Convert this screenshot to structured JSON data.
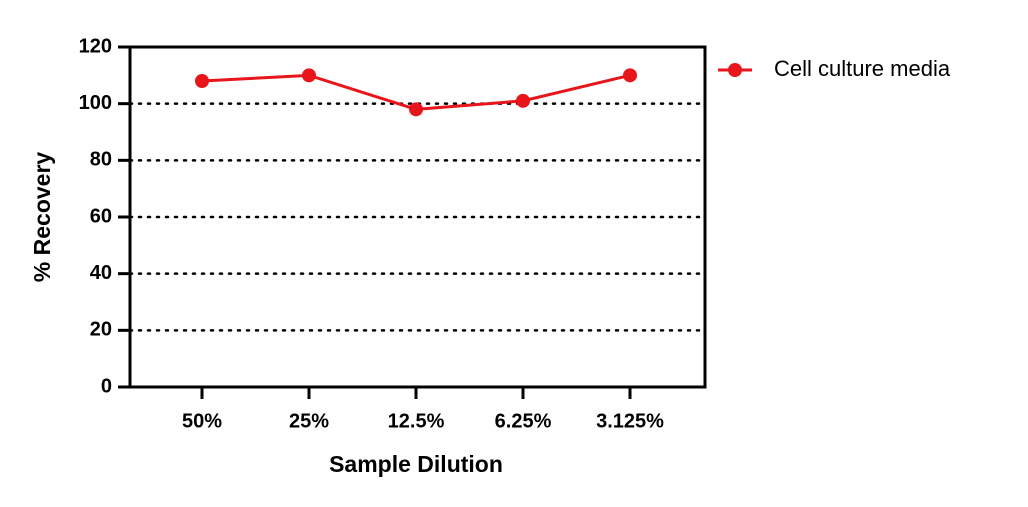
{
  "chart_data": {
    "type": "line",
    "x_label": "Sample Dilution",
    "y_label": "% Recovery",
    "categories": [
      "50%",
      "25%",
      "12.5%",
      "6.25%",
      "3.125%"
    ],
    "series": [
      {
        "name": "Cell culture media",
        "color": "#e8161b",
        "values": [
          108,
          110,
          98,
          101,
          110
        ]
      }
    ],
    "ylim": [
      0,
      120
    ],
    "yticks": [
      0,
      20,
      40,
      60,
      80,
      100,
      120
    ],
    "grid": true,
    "legend": "right"
  }
}
